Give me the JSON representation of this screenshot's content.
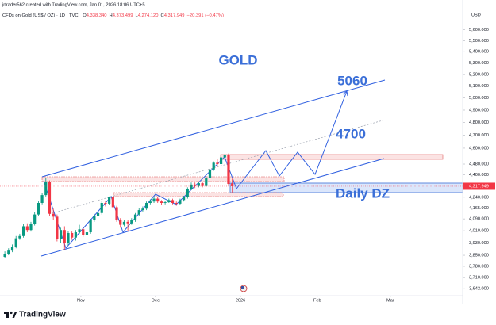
{
  "header": {
    "credit": "jrtrader562 created with TradingView.com, Jan 01, 2026 18:06 UTC+5",
    "symbol": "CFDs on Gold (US$ / OZ) · 1D · TVC",
    "ohlc": [
      {
        "key": "O",
        "value": "4,338.340"
      },
      {
        "key": "H",
        "value": "4,373.499"
      },
      {
        "key": "L",
        "value": "4,274.120"
      },
      {
        "key": "C",
        "value": "4,317.949"
      }
    ],
    "change": "−20.391 (−0.47%)"
  },
  "footer": {
    "brand": "TradingView"
  },
  "chart_data": {
    "type": "candlestick",
    "currency": "USD",
    "log_scale": true,
    "grid": false,
    "up_color": "#089981",
    "down_color": "#f23645",
    "xlim": [
      -1.3,
      122.8
    ],
    "xticks": [
      {
        "value": 20.4,
        "label": "Nov"
      },
      {
        "value": 40.4,
        "label": "Dec"
      },
      {
        "value": 63.2,
        "label": "2026"
      },
      {
        "value": 83.8,
        "label": "Feb"
      },
      {
        "value": 103.4,
        "label": "Mar"
      }
    ],
    "ylim": [
      3600,
      5800
    ],
    "yticks": [
      {
        "value": 5600,
        "label": "5,600.000"
      },
      {
        "value": 5500,
        "label": "5,500.000"
      },
      {
        "value": 5400,
        "label": "5,400.000"
      },
      {
        "value": 5300,
        "label": "5,300.000"
      },
      {
        "value": 5200,
        "label": "5,200.000"
      },
      {
        "value": 5100,
        "label": "5,100.000"
      },
      {
        "value": 5000,
        "label": "5,000.000"
      },
      {
        "value": 4900,
        "label": "4,900.000"
      },
      {
        "value": 4800,
        "label": "4,800.000"
      },
      {
        "value": 4700,
        "label": "4,700.000"
      },
      {
        "value": 4600,
        "label": "4,600.000"
      },
      {
        "value": 4480,
        "label": "4,480.000"
      },
      {
        "value": 4400,
        "label": "4,400.000"
      },
      {
        "value": 4240,
        "label": "4,240.000"
      },
      {
        "value": 4165,
        "label": "4,165.000"
      },
      {
        "value": 4090,
        "label": "4,090.000"
      },
      {
        "value": 4010,
        "label": "4,010.000"
      },
      {
        "value": 3930,
        "label": "3,930.000"
      },
      {
        "value": 3850,
        "label": "3,850.000"
      },
      {
        "value": 3780,
        "label": "3,780.000"
      },
      {
        "value": 3710,
        "label": "3,710.000"
      },
      {
        "value": 3642,
        "label": "3,642.000"
      }
    ],
    "last_price": {
      "value": 4317.949,
      "label": "4,317.949"
    },
    "open": [
      3840,
      3860,
      3880,
      3905,
      3960,
      3975,
      4040,
      4015,
      4055,
      4120,
      4200,
      4255,
      4350,
      4125,
      4105,
      3955,
      4015,
      3930,
      3995,
      3965,
      4000,
      4020,
      3980,
      4000,
      4080,
      4110,
      4130,
      4200,
      4195,
      4240,
      4170,
      4080,
      4050,
      4070,
      4060,
      4080,
      4120,
      4150,
      4160,
      4200,
      4210,
      4230,
      4210,
      4200,
      4205,
      4220,
      4200,
      4195,
      4220,
      4240,
      4300,
      4330,
      4320,
      4340,
      4320,
      4380,
      4440,
      4490,
      4480,
      4530,
      4550,
      4338.34
    ],
    "high": [
      3875,
      3895,
      3920,
      3975,
      3990,
      4055,
      4060,
      4070,
      4135,
      4215,
      4270,
      4381,
      4360,
      4160,
      4120,
      4030,
      4040,
      4010,
      4005,
      4015,
      4050,
      4030,
      4015,
      4090,
      4125,
      4145,
      4215,
      4215,
      4245,
      4245,
      4180,
      4095,
      4085,
      4080,
      4095,
      4130,
      4165,
      4175,
      4210,
      4225,
      4240,
      4240,
      4220,
      4215,
      4230,
      4230,
      4210,
      4230,
      4250,
      4310,
      4345,
      4345,
      4350,
      4350,
      4390,
      4450,
      4500,
      4520,
      4545,
      4555,
      4560,
      4373.499
    ],
    "low": [
      3830,
      3850,
      3870,
      3895,
      3950,
      3965,
      4000,
      4005,
      4045,
      4110,
      4190,
      4245,
      4110,
      4080,
      3940,
      3930,
      3886,
      3915,
      3950,
      3945,
      3990,
      3970,
      3970,
      3990,
      4070,
      4100,
      4120,
      4175,
      4185,
      4160,
      4070,
      4030,
      4040,
      4010,
      4050,
      4070,
      4110,
      4140,
      4150,
      4190,
      4200,
      4200,
      4185,
      4190,
      4200,
      4190,
      4180,
      4185,
      4210,
      4230,
      4290,
      4305,
      4310,
      4310,
      4315,
      4370,
      4430,
      4460,
      4470,
      4520,
      4320,
      4274.12
    ],
    "close": [
      3860,
      3880,
      3905,
      3960,
      3975,
      4040,
      4015,
      4055,
      4120,
      4200,
      4255,
      4350,
      4125,
      4105,
      3955,
      4015,
      3930,
      3995,
      3965,
      4000,
      4020,
      3980,
      4000,
      4080,
      4110,
      4130,
      4200,
      4195,
      4240,
      4170,
      4080,
      4050,
      4070,
      4060,
      4080,
      4120,
      4150,
      4160,
      4200,
      4210,
      4230,
      4210,
      4200,
      4205,
      4220,
      4200,
      4195,
      4220,
      4240,
      4300,
      4330,
      4320,
      4340,
      4320,
      4380,
      4440,
      4490,
      4480,
      4530,
      4550,
      4335,
      4317.949
    ],
    "annotations": [
      "GOLD",
      "5060",
      "4700",
      "Daily DZ"
    ]
  }
}
